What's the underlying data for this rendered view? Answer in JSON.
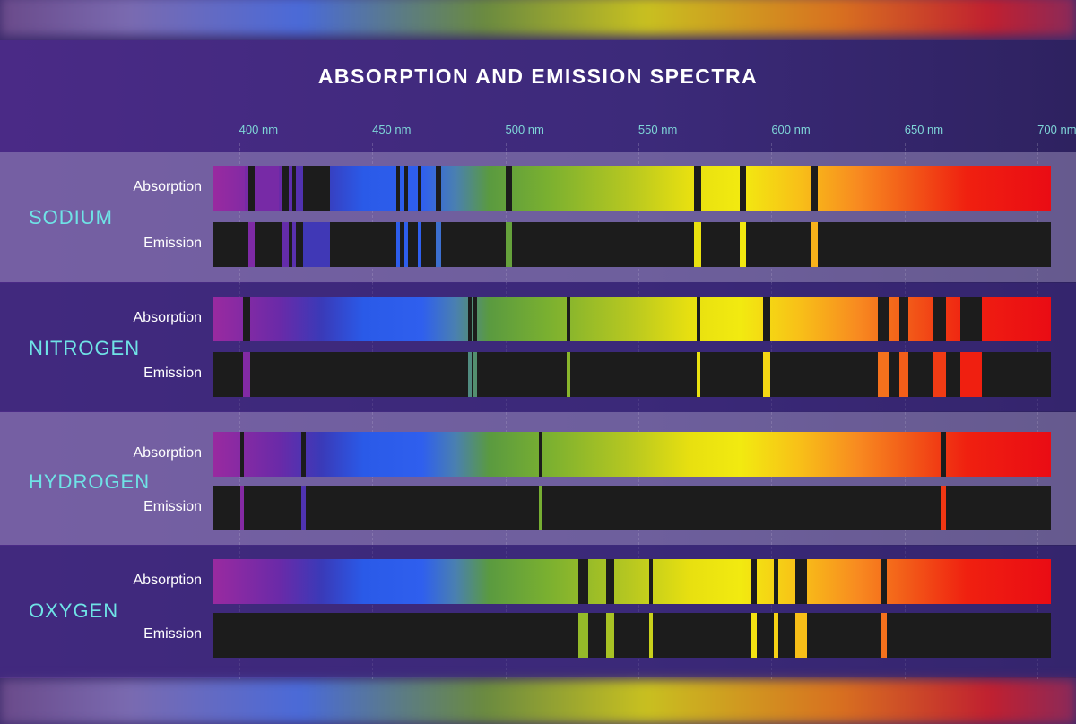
{
  "title": "ABSORPTION AND EMISSION SPECTRA",
  "axis": {
    "unit": "nm",
    "min": 390,
    "max": 705,
    "ticks": [
      "400 nm",
      "450 nm",
      "500 nm",
      "550 nm",
      "600 nm",
      "650 nm",
      "700 nm"
    ],
    "tick_values": [
      400,
      450,
      500,
      550,
      600,
      650,
      700
    ]
  },
  "row_labels": {
    "absorption": "Absorption",
    "emission": "Emission"
  },
  "colors": {
    "panel": "#3c2a7a",
    "element_name": "#6fe3e6",
    "tick_label": "#7fd6d8",
    "absorption_line": "#1c1c1c",
    "emission_background": "#1c1c1c"
  },
  "elements": [
    {
      "name": "SODIUM",
      "lines": [
        {
          "nm": 403.5,
          "w": 2.5
        },
        {
          "nm": 416,
          "w": 2.5
        },
        {
          "nm": 420,
          "w": 1
        },
        {
          "nm": 424,
          "w": 10
        },
        {
          "nm": 459,
          "w": 1.5
        },
        {
          "nm": 462,
          "w": 1.5
        },
        {
          "nm": 467,
          "w": 1.5
        },
        {
          "nm": 474,
          "w": 2
        },
        {
          "nm": 500,
          "w": 2.5
        },
        {
          "nm": 571,
          "w": 2.5
        },
        {
          "nm": 588,
          "w": 2.5
        },
        {
          "nm": 615,
          "w": 2.5
        }
      ],
      "absorption_gaps": [
        {
          "start": 402,
          "end": 415
        }
      ]
    },
    {
      "name": "NITROGEN",
      "lines": [
        {
          "nm": 401.5,
          "w": 2.5
        },
        {
          "nm": 486,
          "w": 1.5
        },
        {
          "nm": 488,
          "w": 1
        },
        {
          "nm": 523,
          "w": 1
        },
        {
          "nm": 572,
          "w": 1
        },
        {
          "nm": 597,
          "w": 2.5
        },
        {
          "nm": 640,
          "w": 4.5
        },
        {
          "nm": 648,
          "w": 3.5
        },
        {
          "nm": 661,
          "w": 4.5
        },
        {
          "nm": 671,
          "w": 8
        },
        {
          "nm": 674,
          "w": 1
        }
      ]
    },
    {
      "name": "HYDROGEN",
      "lines": [
        {
          "nm": 400.5,
          "w": 1
        },
        {
          "nm": 423.5,
          "w": 1
        },
        {
          "nm": 512.5,
          "w": 1
        },
        {
          "nm": 664,
          "w": 1
        }
      ]
    },
    {
      "name": "OXYGEN",
      "lines": [
        {
          "nm": 527.5,
          "w": 3.5
        },
        {
          "nm": 538,
          "w": 3
        },
        {
          "nm": 554,
          "w": 1
        },
        {
          "nm": 592,
          "w": 2.5
        },
        {
          "nm": 601,
          "w": 1
        },
        {
          "nm": 609,
          "w": 4.5
        },
        {
          "nm": 641,
          "w": 2.5
        }
      ]
    }
  ]
}
